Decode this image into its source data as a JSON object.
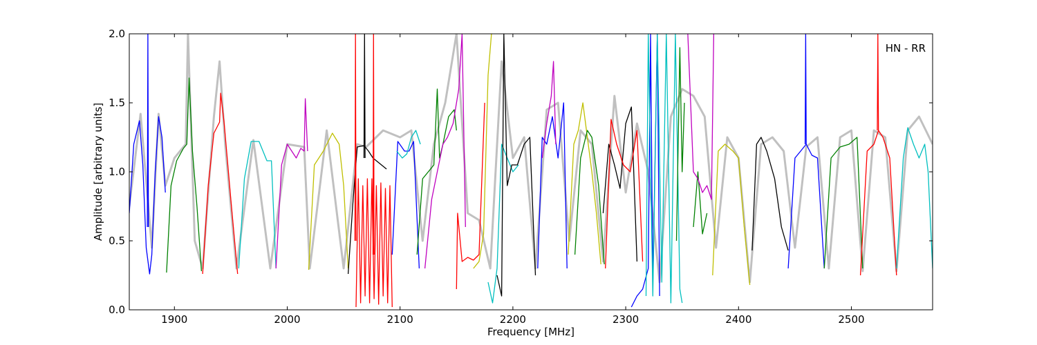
{
  "chart_data": {
    "type": "line",
    "title": "",
    "xlabel": "Frequency [MHz]",
    "ylabel": "Amplitude [arbitrary units]",
    "xlim": [
      1860,
      2572
    ],
    "ylim": [
      0.0,
      2.0
    ],
    "xticks": [
      1900,
      2000,
      2100,
      2200,
      2300,
      2400,
      2500
    ],
    "xtick_labels": [
      "1900",
      "2000",
      "2100",
      "2200",
      "2300",
      "2400",
      "2500"
    ],
    "yticks": [
      0.0,
      0.5,
      1.0,
      1.5,
      2.0
    ],
    "ytick_labels": [
      "0.0",
      "0.5",
      "1.0",
      "1.5",
      "2.0"
    ],
    "grid": false,
    "annotation": "HN - RR",
    "colors": {
      "reference": "#c0c0c0",
      "blue": "#0000ff",
      "green": "#008000",
      "red": "#ff0000",
      "cyan": "#00bfbf",
      "magenta": "#bf00bf",
      "yellow": "#bfbf00",
      "black": "#000000"
    },
    "reference_curve": {
      "color": "reference",
      "x": [
        1860,
        1870,
        1880,
        1886,
        1892,
        1900,
        1910,
        1912,
        1918,
        1925,
        1935,
        1940,
        1945,
        1955,
        1970,
        1985,
        2000,
        2015,
        2020,
        2035,
        2050,
        2062,
        2070,
        2085,
        2100,
        2110,
        2120,
        2130,
        2140,
        2150,
        2160,
        2170,
        2180,
        2190,
        2200,
        2210,
        2220,
        2230,
        2240,
        2250,
        2260,
        2270,
        2280,
        2290,
        2300,
        2310,
        2320,
        2330,
        2340,
        2350,
        2360,
        2370,
        2380,
        2390,
        2400,
        2410,
        2420,
        2430,
        2440,
        2450,
        2460,
        2470,
        2480,
        2490,
        2500,
        2510,
        2520,
        2530,
        2540,
        2550,
        2560,
        2572
      ],
      "y": [
        0.75,
        1.42,
        0.45,
        1.42,
        0.9,
        1.1,
        1.2,
        2.0,
        0.5,
        0.3,
        1.4,
        1.8,
        1.2,
        0.3,
        1.23,
        0.3,
        1.2,
        1.18,
        0.3,
        1.3,
        0.3,
        1.2,
        1.18,
        1.3,
        1.25,
        1.3,
        0.5,
        1.2,
        1.5,
        2.0,
        0.7,
        0.65,
        0.3,
        1.8,
        1.1,
        1.25,
        0.3,
        1.45,
        1.5,
        0.5,
        1.3,
        1.2,
        0.35,
        1.55,
        0.85,
        1.35,
        1.0,
        0.2,
        1.4,
        1.6,
        1.55,
        1.4,
        0.45,
        1.25,
        1.1,
        0.2,
        1.2,
        1.25,
        1.15,
        0.45,
        1.18,
        1.25,
        0.3,
        1.25,
        1.3,
        0.28,
        1.3,
        1.25,
        0.28,
        1.3,
        1.4,
        1.2
      ]
    },
    "series": [
      {
        "color": "blue",
        "x": [
          1860,
          1864,
          1869,
          1872,
          1875,
          1878,
          1880,
          1883,
          1886,
          1889,
          1892
        ],
        "y": [
          0.7,
          1.2,
          1.37,
          1.05,
          0.45,
          0.26,
          0.4,
          1.0,
          1.4,
          1.25,
          0.85
        ]
      },
      {
        "color": "blue",
        "x": [
          1876,
          1876.5,
          1877
        ],
        "y": [
          0.6,
          2.0,
          0.6
        ]
      },
      {
        "color": "green",
        "x": [
          1893,
          1897,
          1902,
          1908,
          1911,
          1913,
          1916,
          1920,
          1924
        ],
        "y": [
          0.27,
          0.9,
          1.08,
          1.17,
          1.2,
          1.68,
          1.15,
          0.75,
          0.28
        ]
      },
      {
        "color": "red",
        "x": [
          1925,
          1930,
          1935,
          1940,
          1941,
          1944,
          1950,
          1956
        ],
        "y": [
          0.26,
          0.9,
          1.28,
          1.36,
          1.57,
          1.36,
          0.8,
          0.26
        ]
      },
      {
        "color": "cyan",
        "x": [
          1957,
          1962,
          1968,
          1975,
          1982,
          1986,
          1990
        ],
        "y": [
          0.3,
          0.95,
          1.22,
          1.22,
          1.08,
          1.08,
          0.3
        ]
      },
      {
        "color": "magenta",
        "x": [
          1990,
          1995,
          2000,
          2008,
          2012,
          2015,
          2016,
          2018
        ],
        "y": [
          0.3,
          1.05,
          1.2,
          1.1,
          1.17,
          1.15,
          1.53,
          1.15
        ]
      },
      {
        "color": "yellow",
        "x": [
          2019,
          2024,
          2032,
          2040,
          2046,
          2050,
          2054
        ],
        "y": [
          0.29,
          1.05,
          1.15,
          1.28,
          1.2,
          0.9,
          0.3
        ]
      },
      {
        "color": "black",
        "x": [
          2054,
          2058,
          2062,
          2068,
          2072,
          2076,
          2082,
          2088
        ],
        "y": [
          0.26,
          0.75,
          1.18,
          1.19,
          1.15,
          1.1,
          1.06,
          1.02
        ]
      },
      {
        "color": "black",
        "x": [
          2068,
          2068.5,
          2069
        ],
        "y": [
          1.1,
          2.0,
          1.1
        ]
      },
      {
        "color": "red",
        "x": [
          2061,
          2063,
          2065,
          2067,
          2069,
          2071,
          2073,
          2075,
          2077,
          2079,
          2081,
          2083,
          2085,
          2087,
          2089,
          2091,
          2093
        ],
        "y": [
          0.02,
          0.95,
          0.05,
          0.9,
          0.1,
          0.95,
          0.05,
          0.95,
          0.08,
          0.9,
          0.04,
          0.92,
          0.1,
          0.88,
          0.05,
          0.9,
          0.02
        ]
      },
      {
        "color": "red",
        "x": [
          2060,
          2060.5,
          2061
        ],
        "y": [
          0.5,
          2.0,
          0.5
        ]
      },
      {
        "color": "red",
        "x": [
          2076,
          2076.5,
          2077
        ],
        "y": [
          0.4,
          2.0,
          0.4
        ]
      },
      {
        "color": "blue",
        "x": [
          2093,
          2098,
          2104,
          2108,
          2112,
          2117
        ],
        "y": [
          0.4,
          1.22,
          1.15,
          1.15,
          1.22,
          0.3
        ]
      },
      {
        "color": "cyan",
        "x": [
          2097,
          2102,
          2106,
          2110,
          2114,
          2118
        ],
        "y": [
          1.15,
          1.1,
          1.13,
          1.25,
          1.3,
          1.2
        ]
      },
      {
        "color": "green",
        "x": [
          2115,
          2120,
          2125,
          2130,
          2133,
          2135,
          2138,
          2143,
          2148,
          2150
        ],
        "y": [
          0.4,
          0.95,
          1.0,
          1.05,
          1.6,
          1.1,
          1.2,
          1.4,
          1.45,
          1.3
        ]
      },
      {
        "color": "magenta",
        "x": [
          2122,
          2128,
          2133,
          2138,
          2142,
          2147,
          2152,
          2155,
          2158
        ],
        "y": [
          0.3,
          0.8,
          1.0,
          1.2,
          1.25,
          1.35,
          1.6,
          2.0,
          0.6
        ]
      },
      {
        "color": "red",
        "x": [
          2150,
          2151,
          2155,
          2160,
          2165,
          2170,
          2175
        ],
        "y": [
          0.15,
          0.7,
          0.35,
          0.38,
          0.36,
          0.4,
          1.5
        ]
      },
      {
        "color": "yellow",
        "x": [
          2165,
          2170,
          2174,
          2178,
          2181
        ],
        "y": [
          0.3,
          0.35,
          0.55,
          1.7,
          2.0
        ]
      },
      {
        "color": "cyan",
        "x": [
          2178,
          2182,
          2186,
          2190,
          2195,
          2200,
          2205
        ],
        "y": [
          0.2,
          0.05,
          0.3,
          1.2,
          1.1,
          1.0,
          1.05
        ]
      },
      {
        "color": "black",
        "x": [
          2186,
          2190,
          2192,
          2195,
          2199,
          2204,
          2210,
          2215,
          2220
        ],
        "y": [
          0.25,
          0.1,
          2.0,
          0.9,
          1.05,
          1.05,
          1.2,
          1.25,
          0.25
        ]
      },
      {
        "color": "blue",
        "x": [
          2222,
          2226,
          2230,
          2235,
          2240,
          2245,
          2248
        ],
        "y": [
          0.3,
          1.25,
          1.2,
          1.4,
          1.1,
          1.5,
          0.3
        ]
      },
      {
        "color": "magenta",
        "x": [
          2226,
          2230,
          2234,
          2236,
          2238
        ],
        "y": [
          1.1,
          1.35,
          1.55,
          1.8,
          1.2
        ]
      },
      {
        "color": "yellow",
        "x": [
          2249,
          2254,
          2258,
          2262,
          2266,
          2270,
          2274,
          2278
        ],
        "y": [
          0.4,
          1.2,
          1.3,
          1.5,
          1.25,
          1.0,
          0.7,
          0.33
        ]
      },
      {
        "color": "green",
        "x": [
          2255,
          2260,
          2266,
          2270,
          2276,
          2281
        ],
        "y": [
          0.4,
          1.1,
          1.3,
          1.25,
          0.9,
          0.33
        ]
      },
      {
        "color": "black",
        "x": [
          2280,
          2285,
          2290,
          2295,
          2300,
          2305,
          2310
        ],
        "y": [
          0.7,
          1.2,
          1.05,
          0.88,
          1.35,
          1.47,
          0.35
        ]
      },
      {
        "color": "red",
        "x": [
          2282,
          2287,
          2292,
          2298,
          2304,
          2310,
          2315
        ],
        "y": [
          0.3,
          1.38,
          1.2,
          1.05,
          1.0,
          1.3,
          0.35
        ]
      },
      {
        "color": "blue",
        "x": [
          2305,
          2310,
          2315,
          2320,
          2322,
          2324,
          2328,
          2330
        ],
        "y": [
          0.02,
          0.1,
          0.15,
          0.3,
          2.0,
          0.2,
          2.0,
          0.1
        ]
      },
      {
        "color": "cyan",
        "x": [
          2318,
          2320,
          2324,
          2328,
          2332,
          2336,
          2340,
          2344,
          2348,
          2350
        ],
        "y": [
          0.1,
          2.0,
          0.1,
          2.0,
          0.2,
          2.0,
          0.05,
          2.0,
          0.15,
          0.05
        ]
      },
      {
        "color": "green",
        "x": [
          2345,
          2348,
          2350,
          2352
        ],
        "y": [
          0.5,
          1.9,
          1.0,
          1.5
        ]
      },
      {
        "color": "green",
        "x": [
          2360,
          2364,
          2368,
          2372
        ],
        "y": [
          0.6,
          1.0,
          0.55,
          0.7
        ]
      },
      {
        "color": "magenta",
        "x": [
          2355,
          2360,
          2364,
          2368,
          2372,
          2376,
          2378
        ],
        "y": [
          2.0,
          1.0,
          0.95,
          0.85,
          0.9,
          0.8,
          2.0
        ]
      },
      {
        "color": "yellow",
        "x": [
          2377,
          2382,
          2388,
          2395,
          2400,
          2405,
          2410
        ],
        "y": [
          0.25,
          1.15,
          1.2,
          1.15,
          1.1,
          0.6,
          0.18
        ]
      },
      {
        "color": "black",
        "x": [
          2412,
          2416,
          2420,
          2425,
          2432,
          2438,
          2444
        ],
        "y": [
          0.43,
          1.2,
          1.25,
          1.15,
          0.95,
          0.6,
          0.43
        ]
      },
      {
        "color": "blue",
        "x": [
          2444,
          2450,
          2455,
          2460,
          2465,
          2470,
          2476
        ],
        "y": [
          0.3,
          1.1,
          1.15,
          1.2,
          1.12,
          1.1,
          0.3
        ]
      },
      {
        "color": "blue",
        "x": [
          2459,
          2459.5,
          2460
        ],
        "y": [
          1.2,
          2.0,
          1.2
        ]
      },
      {
        "color": "green",
        "x": [
          2476,
          2482,
          2490,
          2498,
          2505,
          2510
        ],
        "y": [
          0.3,
          1.1,
          1.18,
          1.2,
          1.25,
          0.3
        ]
      },
      {
        "color": "red",
        "x": [
          2508,
          2514,
          2520,
          2524,
          2528,
          2534,
          2540
        ],
        "y": [
          0.25,
          1.15,
          1.2,
          1.3,
          1.25,
          1.1,
          0.25
        ]
      },
      {
        "color": "red",
        "x": [
          2523,
          2523.5,
          2524
        ],
        "y": [
          1.3,
          2.0,
          1.3
        ]
      },
      {
        "color": "cyan",
        "x": [
          2540,
          2546,
          2550,
          2555,
          2560,
          2565,
          2568,
          2572
        ],
        "y": [
          0.3,
          1.1,
          1.32,
          1.2,
          1.1,
          1.2,
          1.0,
          0.3
        ]
      }
    ]
  }
}
